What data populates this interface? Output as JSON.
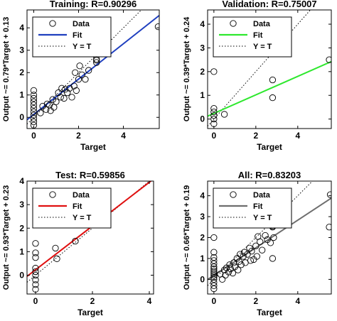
{
  "chart_data": [
    {
      "type": "scatter",
      "title": "Training: R=0.90296",
      "xlabel": "Target",
      "ylabel": "Output ~= 0.79*Target + 0.13",
      "xlim": [
        -0.3,
        5.6
      ],
      "ylim": [
        -0.5,
        4.8
      ],
      "xticks": [
        0,
        2,
        4
      ],
      "yticks": [
        0,
        1,
        2,
        3,
        4
      ],
      "fit": {
        "slope": 0.79,
        "intercept": 0.13,
        "color": "#1f3fbf",
        "name": "Fit"
      },
      "legend": {
        "placement": "top-left",
        "entries": [
          "Data",
          "Fit",
          "Y = T"
        ]
      },
      "grid": false,
      "points": [
        [
          0,
          -0.35
        ],
        [
          0,
          -0.2
        ],
        [
          0,
          -0.05
        ],
        [
          0,
          0.1
        ],
        [
          0,
          0.25
        ],
        [
          0,
          0.4
        ],
        [
          0,
          0.55
        ],
        [
          0,
          0.7
        ],
        [
          0,
          0.85
        ],
        [
          0,
          1.0
        ],
        [
          0,
          1.2
        ],
        [
          0.3,
          0.2
        ],
        [
          0.4,
          0.5
        ],
        [
          0.55,
          0.35
        ],
        [
          0.6,
          0.6
        ],
        [
          0.7,
          0.55
        ],
        [
          0.75,
          0.3
        ],
        [
          0.85,
          0.8
        ],
        [
          0.9,
          0.45
        ],
        [
          1.0,
          0.7
        ],
        [
          1.1,
          1.1
        ],
        [
          1.2,
          0.9
        ],
        [
          1.25,
          1.3
        ],
        [
          1.35,
          0.85
        ],
        [
          1.4,
          1.25
        ],
        [
          1.5,
          1.1
        ],
        [
          1.6,
          1.3
        ],
        [
          1.7,
          0.9
        ],
        [
          1.8,
          1.4
        ],
        [
          1.85,
          2.0
        ],
        [
          1.9,
          1.2
        ],
        [
          2.0,
          1.7
        ],
        [
          2.05,
          2.3
        ],
        [
          2.15,
          1.9
        ],
        [
          2.3,
          1.7
        ],
        [
          2.45,
          2.1
        ],
        [
          2.8,
          2.45
        ],
        [
          2.8,
          2.55
        ],
        [
          2.8,
          2.6
        ],
        [
          5.55,
          4.05
        ]
      ]
    },
    {
      "type": "scatter",
      "title": "Validation: R=0.75007",
      "xlabel": "Target",
      "ylabel": "Output ~= 0.39*Target + 0.24",
      "xlim": [
        -0.3,
        5.6
      ],
      "ylim": [
        -0.4,
        4.6
      ],
      "xticks": [
        0,
        2,
        4
      ],
      "yticks": [
        0,
        1,
        2,
        3,
        4
      ],
      "fit": {
        "slope": 0.39,
        "intercept": 0.24,
        "color": "#2ee82e",
        "name": "Fit"
      },
      "legend": {
        "placement": "top-left",
        "entries": [
          "Data",
          "Fit",
          "Y = T"
        ]
      },
      "grid": false,
      "points": [
        [
          0,
          -0.2
        ],
        [
          0,
          0.0
        ],
        [
          0,
          0.15
        ],
        [
          0,
          0.3
        ],
        [
          0,
          0.45
        ],
        [
          0,
          2.0
        ],
        [
          0.5,
          0.2
        ],
        [
          2.8,
          0.9
        ],
        [
          2.8,
          1.65
        ],
        [
          5.5,
          2.5
        ]
      ]
    },
    {
      "type": "scatter",
      "title": "Test: R=0.59856",
      "xlabel": "Target",
      "ylabel": "Output ~= 0.93*Target + 0.23",
      "xlim": [
        -0.3,
        4.15
      ],
      "ylim": [
        -0.8,
        4.0
      ],
      "xticks": [
        0,
        2,
        4
      ],
      "yticks": [
        0,
        1,
        2,
        3,
        4
      ],
      "fit": {
        "slope": 0.93,
        "intercept": 0.23,
        "color": "#e01010",
        "name": "Fit"
      },
      "legend": {
        "placement": "top-left",
        "entries": [
          "Data",
          "Fit",
          "Y = T"
        ]
      },
      "grid": false,
      "points": [
        [
          0,
          -0.6
        ],
        [
          0,
          -0.4
        ],
        [
          0,
          -0.2
        ],
        [
          0,
          0.0
        ],
        [
          0,
          0.15
        ],
        [
          0,
          0.3
        ],
        [
          0,
          0.75
        ],
        [
          0,
          0.95
        ],
        [
          0,
          1.35
        ],
        [
          0.7,
          1.15
        ],
        [
          0.75,
          0.7
        ],
        [
          1.4,
          1.45
        ]
      ]
    },
    {
      "type": "scatter",
      "title": "All: R=0.83203",
      "xlabel": "Target",
      "ylabel": "Output ~= 0.66*Target + 0.19",
      "xlim": [
        -0.3,
        5.6
      ],
      "ylim": [
        -0.7,
        4.7
      ],
      "xticks": [
        0,
        2,
        4
      ],
      "yticks": [
        0,
        1,
        2,
        3,
        4
      ],
      "fit": {
        "slope": 0.66,
        "intercept": 0.19,
        "color": "#6e6e6e",
        "name": "Fit"
      },
      "legend": {
        "placement": "top-left",
        "entries": [
          "Data",
          "Fit",
          "Y = T"
        ]
      },
      "grid": false,
      "points": [
        [
          0,
          -0.45
        ],
        [
          0,
          -0.3
        ],
        [
          0,
          -0.15
        ],
        [
          0,
          0.0
        ],
        [
          0,
          0.1
        ],
        [
          0,
          0.2
        ],
        [
          0,
          0.3
        ],
        [
          0,
          0.4
        ],
        [
          0,
          0.5
        ],
        [
          0,
          0.6
        ],
        [
          0,
          0.75
        ],
        [
          0,
          0.9
        ],
        [
          0,
          1.05
        ],
        [
          0,
          1.3
        ],
        [
          0,
          2.0
        ],
        [
          0.3,
          0.25
        ],
        [
          0.4,
          0.0
        ],
        [
          0.5,
          0.45
        ],
        [
          0.55,
          0.2
        ],
        [
          0.6,
          0.55
        ],
        [
          0.7,
          0.35
        ],
        [
          0.75,
          0.7
        ],
        [
          0.8,
          0.5
        ],
        [
          0.9,
          0.3
        ],
        [
          0.95,
          0.8
        ],
        [
          1.0,
          0.6
        ],
        [
          1.1,
          1.0
        ],
        [
          1.15,
          0.45
        ],
        [
          1.2,
          0.85
        ],
        [
          1.25,
          1.2
        ],
        [
          1.3,
          0.7
        ],
        [
          1.4,
          1.1
        ],
        [
          1.45,
          1.3
        ],
        [
          1.5,
          0.8
        ],
        [
          1.6,
          1.2
        ],
        [
          1.7,
          1.5
        ],
        [
          1.75,
          0.9
        ],
        [
          1.8,
          1.35
        ],
        [
          1.9,
          0.95
        ],
        [
          2.0,
          1.6
        ],
        [
          2.05,
          1.1
        ],
        [
          2.1,
          2.05
        ],
        [
          2.2,
          1.8
        ],
        [
          2.3,
          1.4
        ],
        [
          2.45,
          2.1
        ],
        [
          2.55,
          1.9
        ],
        [
          2.7,
          1.75
        ],
        [
          2.8,
          2.5
        ],
        [
          2.8,
          2.55
        ],
        [
          2.8,
          2.6
        ],
        [
          2.85,
          2.0
        ],
        [
          2.8,
          1.0
        ],
        [
          5.5,
          2.5
        ],
        [
          5.55,
          4.05
        ]
      ]
    }
  ]
}
